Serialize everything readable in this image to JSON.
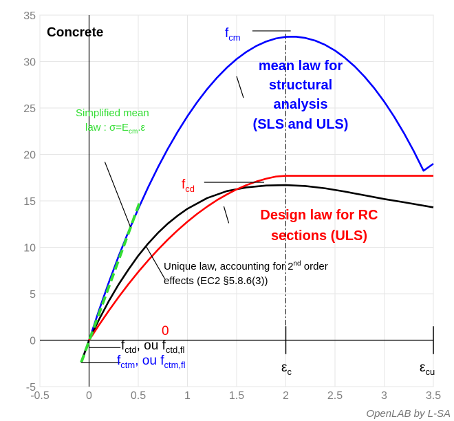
{
  "chart_data": {
    "type": "line",
    "title": "Concrete",
    "xlim": [
      -0.5,
      3.5
    ],
    "ylim": [
      -5,
      35
    ],
    "x_ticks": [
      -0.5,
      0,
      0.5,
      1,
      1.5,
      2,
      2.5,
      3,
      3.5
    ],
    "x_tick_labels": [
      "-0.5",
      "0",
      "0.5",
      "1",
      "1.5",
      "2",
      "2.5",
      "3",
      "3.5"
    ],
    "y_ticks": [
      -5,
      0,
      5,
      10,
      15,
      20,
      25,
      30,
      35
    ],
    "y_tick_labels": [
      "-5",
      "0",
      "5",
      "10",
      "15",
      "20",
      "25",
      "30",
      "35"
    ],
    "grid": true,
    "series": [
      {
        "name": "mean law for structural analysis (SLS and ULS)",
        "color": "#0000ff",
        "x": [
          -0.08,
          0,
          0.1,
          0.2,
          0.3,
          0.4,
          0.5,
          0.6,
          0.7,
          0.8,
          0.9,
          1.0,
          1.1,
          1.2,
          1.3,
          1.4,
          1.5,
          1.6,
          1.7,
          1.8,
          1.9,
          2.0,
          2.1,
          2.2,
          2.3,
          2.4,
          2.5,
          2.6,
          2.7,
          2.8,
          2.9,
          3.0,
          3.1,
          3.2,
          3.3,
          3.4,
          3.5
        ],
        "y": [
          -2.4,
          0,
          3.19,
          6.2,
          9.03,
          11.68,
          14.15,
          16.46,
          18.61,
          20.6,
          22.43,
          24.12,
          25.65,
          27.03,
          28.26,
          29.34,
          30.27,
          31.05,
          31.68,
          32.16,
          32.49,
          32.66,
          32.68,
          32.54,
          32.25,
          31.8,
          31.19,
          30.41,
          29.48,
          28.38,
          27.12,
          25.69,
          24.09,
          22.31,
          20.37,
          18.25,
          19.0
        ]
      },
      {
        "name": "Unique law, accounting for 2nd order effects (EC2 §5.8.6(3))",
        "color": "#000000",
        "x": [
          -0.08,
          0,
          0.1,
          0.2,
          0.3,
          0.4,
          0.5,
          0.6,
          0.7,
          0.8,
          0.9,
          1.0,
          1.2,
          1.4,
          1.6,
          1.8,
          2.0,
          2.2,
          2.4,
          2.6,
          2.8,
          3.0,
          3.2,
          3.5
        ],
        "y": [
          -2.4,
          0,
          2.2,
          4.2,
          6.0,
          7.6,
          9.1,
          10.4,
          11.55,
          12.55,
          13.4,
          14.15,
          15.3,
          16.05,
          16.45,
          16.65,
          16.7,
          16.6,
          16.35,
          16.0,
          15.6,
          15.2,
          14.85,
          14.3
        ]
      },
      {
        "name": "Design law for RC sections (ULS)",
        "color": "#ff0000",
        "x": [
          0,
          0.1,
          0.2,
          0.3,
          0.4,
          0.5,
          0.6,
          0.7,
          0.8,
          0.9,
          1.0,
          1.1,
          1.2,
          1.3,
          1.4,
          1.5,
          1.6,
          1.7,
          1.8,
          1.9,
          2.0,
          2.5,
          3.0,
          3.5
        ],
        "y": [
          0,
          1.62,
          3.17,
          4.64,
          6.03,
          7.35,
          8.58,
          9.74,
          10.83,
          11.83,
          12.76,
          13.61,
          14.38,
          15.08,
          15.69,
          16.24,
          16.7,
          17.08,
          17.39,
          17.62,
          17.7,
          17.7,
          17.7,
          17.7
        ]
      },
      {
        "name": "Simplified mean law : σ=Ecm.ε",
        "color": "#33dd33",
        "dashed": true,
        "x": [
          -0.08,
          0.52
        ],
        "y": [
          -2.4,
          15.0
        ]
      }
    ],
    "annotations": {
      "concrete": "Concrete",
      "fcm": "f",
      "fcm_sub": "cm",
      "fcd": "f",
      "fcd_sub": "cd",
      "mean_law": [
        "mean law for",
        "structural",
        "analysis",
        "(SLS and ULS)"
      ],
      "design_law": [
        "Design law for RC",
        "sections (ULS)"
      ],
      "simplified": [
        "Simplified mean",
        "law : σ=E"
      ],
      "simplified_sub": "cm",
      "simplified_end": ".ε",
      "unique_law_line1": "Unique law, accounting for 2",
      "unique_law_sup": "nd",
      "unique_law_line1_end": " order",
      "unique_law_line2": "effects (EC2 §5.8.6(3))",
      "zero_label": "0",
      "fctd": "f",
      "fctd_sub": "ctd",
      "fctd_ou": ", ou f",
      "fctd_fl_sub": "ctd,fl",
      "fctm": "f",
      "fctm_sub": "ctm",
      "fctm_ou": ", ou f",
      "fctm_fl_sub": "ctm,fl",
      "eps_c": "ε",
      "eps_c_sub": "c",
      "eps_cu": "ε",
      "eps_cu_sub": "cu",
      "watermark": "OpenLAB by L-SA"
    }
  }
}
